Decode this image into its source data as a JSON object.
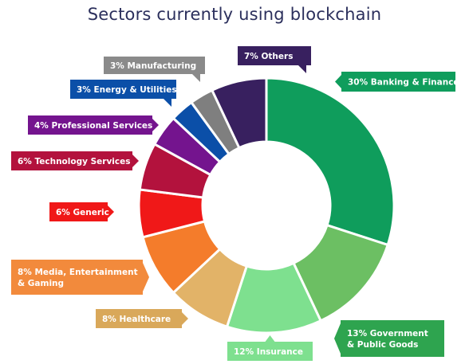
{
  "chart_data": {
    "type": "pie",
    "style": "donut",
    "title": "Sectors currently using blockchain",
    "slices": [
      {
        "label": "30% Banking & Finance",
        "value": 30,
        "color": "#0f9d5c",
        "label_color": "#0f9d5c"
      },
      {
        "label": "13% Government & Public Goods",
        "value": 13,
        "color": "#6cbf63",
        "label_color": "#2ea44f"
      },
      {
        "label": "12% Insurance",
        "value": 12,
        "color": "#7ee08f",
        "label_color": "#7ee08f"
      },
      {
        "label": "8% Healthcare",
        "value": 8,
        "color": "#e2b368",
        "label_color": "#d9a85a"
      },
      {
        "label": "8% Media, Entertainment & Gaming",
        "value": 8,
        "color": "#f47c2b",
        "label_color": "#f28a3c"
      },
      {
        "label": "6% Generic",
        "value": 6,
        "color": "#f01818",
        "label_color": "#f01818"
      },
      {
        "label": "6% Technology Services",
        "value": 6,
        "color": "#b3123d",
        "label_color": "#b3123d"
      },
      {
        "label": "4% Professional Services",
        "value": 4,
        "color": "#74148e",
        "label_color": "#74148e"
      },
      {
        "label": "3% Energy & Utilities",
        "value": 3,
        "color": "#0b4fa8",
        "label_color": "#0b4fa8"
      },
      {
        "label": "3% Manufacturing",
        "value": 3,
        "color": "#7f7f7f",
        "label_color": "#8a8a8a"
      },
      {
        "label": "7% Others",
        "value": 7,
        "color": "#38205f",
        "label_color": "#38205f"
      }
    ]
  }
}
